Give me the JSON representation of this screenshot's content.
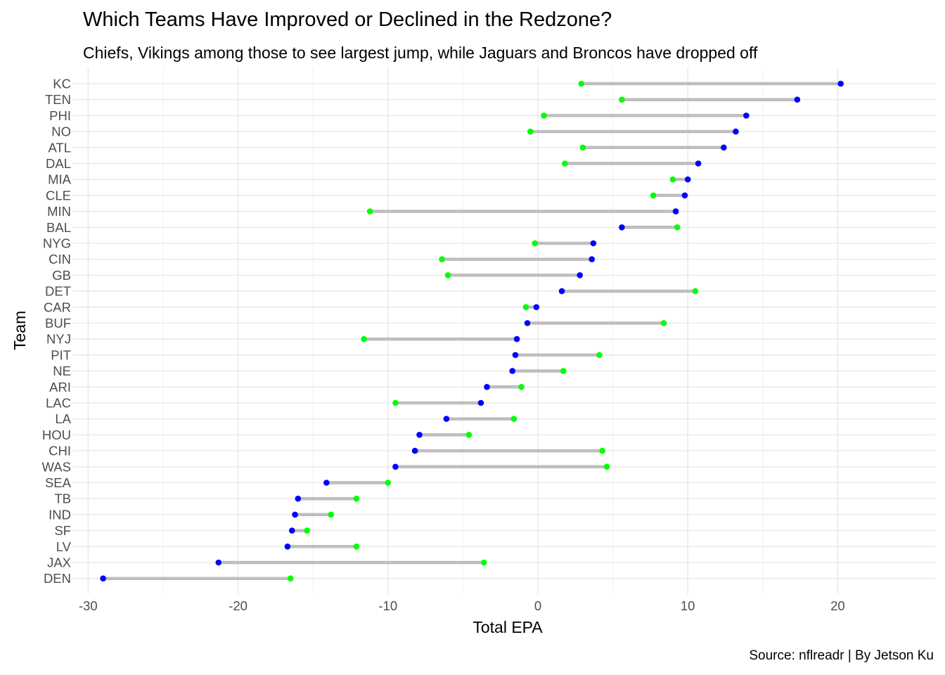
{
  "chart_data": {
    "type": "dumbbell",
    "title": "Which Teams Have Improved or Declined in the Redzone?",
    "subtitle": "Chiefs, Vikings among those to see largest jump, while Jaguars and Broncos have dropped off",
    "caption": "Source: nflreadr | By Jetson Ku",
    "xlabel": "Total EPA",
    "ylabel": "Team",
    "xlim": [
      -31,
      26.5
    ],
    "x_ticks": [
      -30,
      -20,
      -10,
      0,
      10,
      20
    ],
    "x_tick_labels": [
      "-30",
      "-20",
      "-10",
      "0",
      "10",
      "20"
    ],
    "grid": true,
    "colors": {
      "blue_series": "#0000ff",
      "green_series": "#00ff00",
      "segment": "#bebebe"
    },
    "rows": [
      {
        "team": "KC",
        "blue": 20.2,
        "green": 2.9
      },
      {
        "team": "TEN",
        "blue": 17.3,
        "green": 5.6
      },
      {
        "team": "PHI",
        "blue": 13.9,
        "green": 0.4
      },
      {
        "team": "NO",
        "blue": 13.2,
        "green": -0.5
      },
      {
        "team": "ATL",
        "blue": 12.4,
        "green": 3.0
      },
      {
        "team": "DAL",
        "blue": 10.7,
        "green": 1.8
      },
      {
        "team": "MIA",
        "blue": 10.0,
        "green": 9.0
      },
      {
        "team": "CLE",
        "blue": 9.8,
        "green": 7.7
      },
      {
        "team": "MIN",
        "blue": 9.2,
        "green": -11.2
      },
      {
        "team": "BAL",
        "blue": 5.6,
        "green": 9.3
      },
      {
        "team": "NYG",
        "blue": 3.7,
        "green": -0.2
      },
      {
        "team": "CIN",
        "blue": 3.6,
        "green": -6.4
      },
      {
        "team": "GB",
        "blue": 2.8,
        "green": -6.0
      },
      {
        "team": "DET",
        "blue": 1.6,
        "green": 10.5
      },
      {
        "team": "CAR",
        "blue": -0.1,
        "green": -0.8
      },
      {
        "team": "BUF",
        "blue": -0.7,
        "green": 8.4
      },
      {
        "team": "NYJ",
        "blue": -1.4,
        "green": -11.6
      },
      {
        "team": "PIT",
        "blue": -1.5,
        "green": 4.1
      },
      {
        "team": "NE",
        "blue": -1.7,
        "green": 1.7
      },
      {
        "team": "ARI",
        "blue": -3.4,
        "green": -1.1
      },
      {
        "team": "LAC",
        "blue": -3.8,
        "green": -9.5
      },
      {
        "team": "LA",
        "blue": -6.1,
        "green": -1.6
      },
      {
        "team": "HOU",
        "blue": -7.9,
        "green": -4.6
      },
      {
        "team": "CHI",
        "blue": -8.2,
        "green": 4.3
      },
      {
        "team": "WAS",
        "blue": -9.5,
        "green": 4.6
      },
      {
        "team": "SEA",
        "blue": -14.1,
        "green": -10.0
      },
      {
        "team": "TB",
        "blue": -16.0,
        "green": -12.1
      },
      {
        "team": "IND",
        "blue": -16.2,
        "green": -13.8
      },
      {
        "team": "SF",
        "blue": -16.4,
        "green": -15.4
      },
      {
        "team": "LV",
        "blue": -16.7,
        "green": -12.1
      },
      {
        "team": "JAX",
        "blue": -21.3,
        "green": -3.6
      },
      {
        "team": "DEN",
        "blue": -29.0,
        "green": -16.5
      }
    ]
  }
}
